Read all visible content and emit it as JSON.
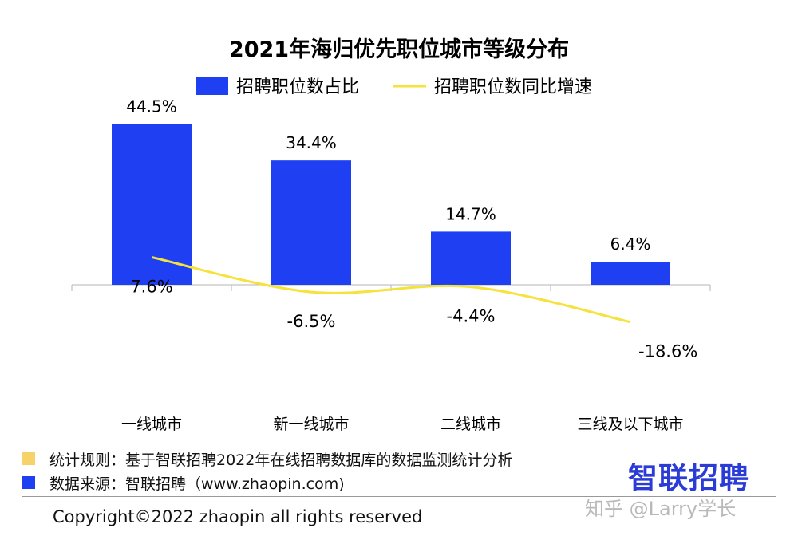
{
  "chart_data": {
    "type": "bar",
    "title": "2021年海归优先职位城市等级分布",
    "categories": [
      "一线城市",
      "新一线城市",
      "二线城市",
      "三线及以下城市"
    ],
    "series": [
      {
        "name": "招聘职位数占比",
        "type": "bar",
        "color": "#1f3ff2",
        "values": [
          44.5,
          34.4,
          14.7,
          6.4
        ],
        "labels": [
          "44.5%",
          "34.4%",
          "14.7%",
          "6.4%"
        ]
      },
      {
        "name": "招聘职位数同比增速",
        "type": "line",
        "color": "#f5e23a",
        "values": [
          7.6,
          -6.5,
          -4.4,
          -18.6
        ],
        "labels": [
          "7.6%",
          "-6.5%",
          "-4.4%",
          "-18.6%"
        ]
      }
    ],
    "legend_position": "top",
    "grid": false
  },
  "notes": [
    {
      "text": "统计规则：基于智联招聘2022年在线招聘数据库的数据监测统计分析",
      "color": "#f5d36a"
    },
    {
      "text": "数据来源：智联招聘（www.zhaopin.com)",
      "color": "#1f3ff2"
    }
  ],
  "brand": "智联招聘",
  "copyright": "Copyright©2022 zhaopin all rights reserved",
  "watermark": "知乎 @Larry学长"
}
